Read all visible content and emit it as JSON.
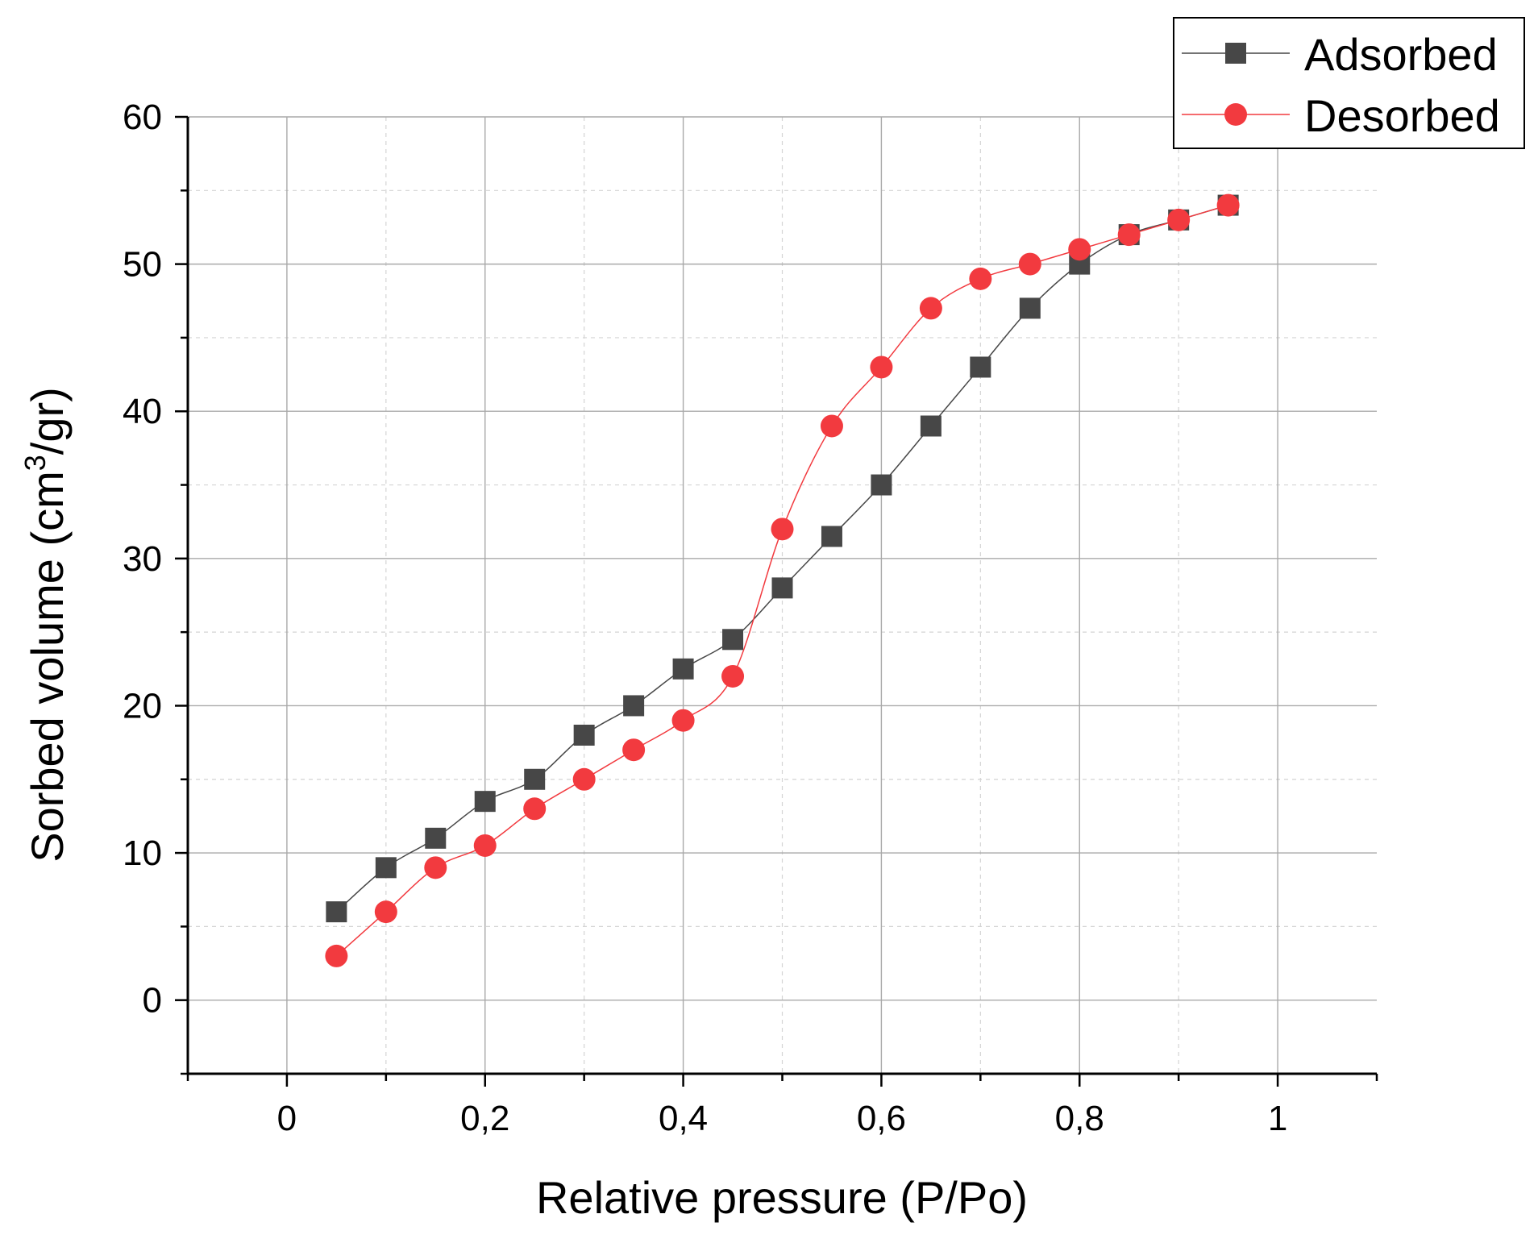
{
  "chart_data": {
    "type": "line",
    "title": "",
    "xlabel": "Relative pressure (P/Po)",
    "ylabel_prefix": "Sorbed volume (cm",
    "ylabel_sup": "3",
    "ylabel_suffix": "/gr)",
    "xlim": [
      -0.1,
      1.1
    ],
    "ylim": [
      -5,
      60
    ],
    "x_ticks": [
      0,
      0.2,
      0.4,
      0.6,
      0.8,
      1
    ],
    "x_tick_labels": [
      "0",
      "0,2",
      "0,4",
      "0,6",
      "0,8",
      "1"
    ],
    "y_ticks": [
      0,
      10,
      20,
      30,
      40,
      50,
      60
    ],
    "y_tick_labels": [
      "0",
      "10",
      "20",
      "30",
      "40",
      "50",
      "60"
    ],
    "grid": true,
    "legend_position": "top-right",
    "series": [
      {
        "name": "Adsorbed",
        "color": "#474747",
        "marker": "square",
        "x": [
          0.05,
          0.1,
          0.15,
          0.2,
          0.25,
          0.3,
          0.35,
          0.4,
          0.45,
          0.5,
          0.55,
          0.6,
          0.65,
          0.7,
          0.75,
          0.8,
          0.85,
          0.9,
          0.95
        ],
        "y": [
          6,
          9,
          11,
          13.5,
          15,
          18,
          20,
          22.5,
          24.5,
          28,
          31.5,
          35,
          39,
          43,
          47,
          50,
          52,
          53,
          54
        ]
      },
      {
        "name": "Desorbed",
        "color": "#f23a3f",
        "marker": "circle",
        "x": [
          0.05,
          0.1,
          0.15,
          0.2,
          0.25,
          0.3,
          0.35,
          0.4,
          0.45,
          0.5,
          0.55,
          0.6,
          0.65,
          0.7,
          0.75,
          0.8,
          0.85,
          0.9,
          0.95
        ],
        "y": [
          3,
          6,
          9,
          10.5,
          13,
          15,
          17,
          19,
          22,
          32,
          39,
          43,
          47,
          49,
          50,
          51,
          52,
          53,
          54
        ]
      }
    ]
  }
}
